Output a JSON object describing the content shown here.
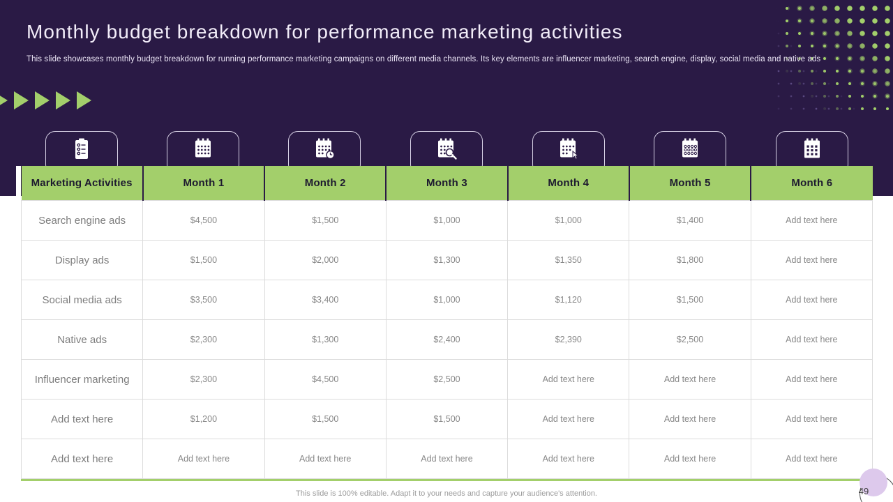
{
  "header": {
    "title": "Monthly budget breakdown for performance marketing activities",
    "subtitle": "This slide showcases monthly budget breakdown for running performance marketing campaigns on different media channels. Its key elements are influencer marketing, search engine, display, social media and native ads"
  },
  "decorations": {
    "arrow_count": 5,
    "icons": [
      "clipboard-checklist-icon",
      "calendar-icon",
      "calendar-clock-icon",
      "calendar-search-icon",
      "calendar-pointer-icon",
      "calendar-circles-icon",
      "calendar-grid-icon"
    ]
  },
  "colors": {
    "background_dark": "#2a1a45",
    "accent_green": "#a3cf6b",
    "header_text": "#1d1a2f",
    "cell_text": "#878787",
    "lavender": "#ddc9ec",
    "white": "#ffffff"
  },
  "table": {
    "columns": [
      "Marketing Activities",
      "Month 1",
      "Month 2",
      "Month 3",
      "Month 4",
      "Month 5",
      "Month 6"
    ],
    "rows": [
      {
        "label": "Search engine ads",
        "values": [
          "$4,500",
          "$1,500",
          "$1,000",
          "$1,000",
          "$1,400",
          "Add text here"
        ]
      },
      {
        "label": "Display ads",
        "values": [
          "$1,500",
          "$2,000",
          "$1,300",
          "$1,350",
          "$1,800",
          "Add text here"
        ]
      },
      {
        "label": "Social media ads",
        "values": [
          "$3,500",
          "$3,400",
          "$1,000",
          "$1,120",
          "$1,500",
          "Add text here"
        ]
      },
      {
        "label": "Native ads",
        "values": [
          "$2,300",
          "$1,300",
          "$2,400",
          "$2,390",
          "$2,500",
          "Add text here"
        ]
      },
      {
        "label": "Influencer marketing",
        "values": [
          "$2,300",
          "$4,500",
          "$2,500",
          "Add text here",
          "Add text here",
          "Add text here"
        ]
      },
      {
        "label": "Add text here",
        "values": [
          "$1,200",
          "$1,500",
          "$1,500",
          "Add text here",
          "Add text here",
          "Add text here"
        ]
      },
      {
        "label": "Add text here",
        "values": [
          "Add text here",
          "Add text here",
          "Add text here",
          "Add text here",
          "Add text here",
          "Add text here"
        ]
      }
    ]
  },
  "footer": {
    "note": "This slide is 100% editable. Adapt it to your needs and capture your audience's attention.",
    "page_number": "49"
  }
}
